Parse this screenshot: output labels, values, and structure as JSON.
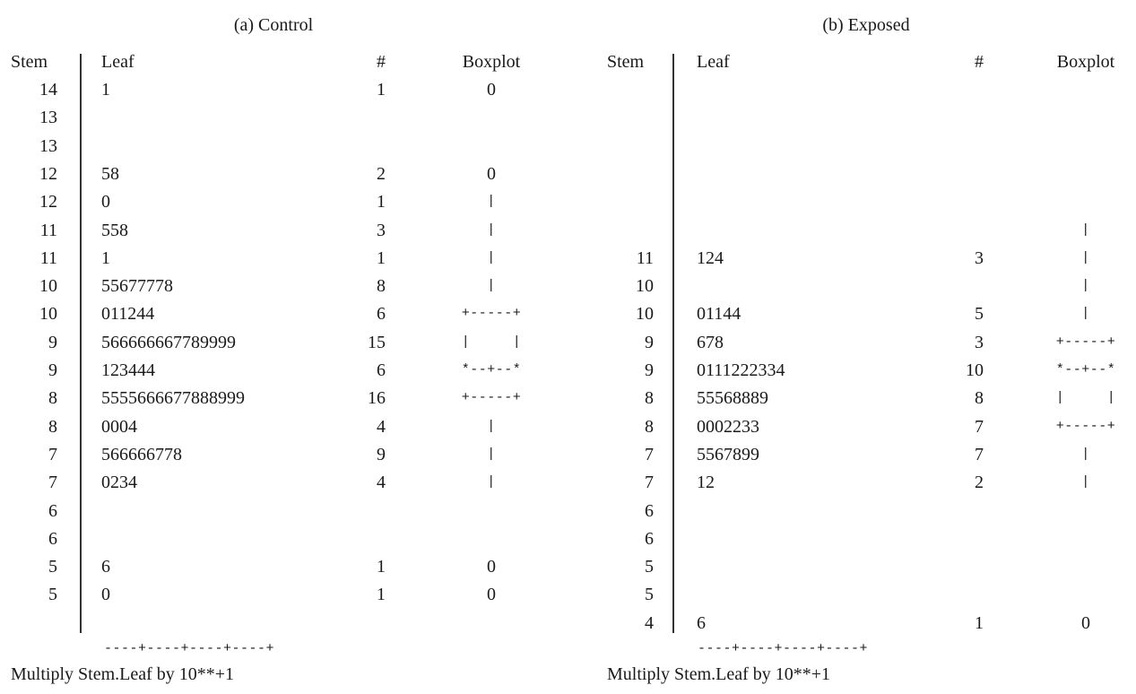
{
  "chart_data": [
    {
      "type": "table",
      "title": "(a) Control",
      "headers": [
        "Stem",
        "Leaf",
        "#",
        "Boxplot"
      ],
      "rows": [
        {
          "stem": "14",
          "leaf": "1",
          "count": "1",
          "box": "0"
        },
        {
          "stem": "13",
          "leaf": "",
          "count": "",
          "box": ""
        },
        {
          "stem": "13",
          "leaf": "",
          "count": "",
          "box": ""
        },
        {
          "stem": "12",
          "leaf": "58",
          "count": "2",
          "box": "0"
        },
        {
          "stem": "12",
          "leaf": "0",
          "count": "1",
          "box": "|"
        },
        {
          "stem": "11",
          "leaf": "558",
          "count": "3",
          "box": "|"
        },
        {
          "stem": "11",
          "leaf": "1",
          "count": "1",
          "box": "|"
        },
        {
          "stem": "10",
          "leaf": "55677778",
          "count": "8",
          "box": "|"
        },
        {
          "stem": "10",
          "leaf": "011244",
          "count": "6",
          "box": "+-----+"
        },
        {
          "stem": "9",
          "leaf": "566666667789999",
          "count": "15",
          "box": "|     |"
        },
        {
          "stem": "9",
          "leaf": "123444",
          "count": "6",
          "box": "*--+--*"
        },
        {
          "stem": "8",
          "leaf": "5555666677888999",
          "count": "16",
          "box": "+-----+"
        },
        {
          "stem": "8",
          "leaf": "0004",
          "count": "4",
          "box": "|"
        },
        {
          "stem": "7",
          "leaf": "566666778",
          "count": "9",
          "box": "|"
        },
        {
          "stem": "7",
          "leaf": "0234",
          "count": "4",
          "box": "|"
        },
        {
          "stem": "6",
          "leaf": "",
          "count": "",
          "box": ""
        },
        {
          "stem": "6",
          "leaf": "",
          "count": "",
          "box": ""
        },
        {
          "stem": "5",
          "leaf": "6",
          "count": "1",
          "box": "0"
        },
        {
          "stem": "5",
          "leaf": "0",
          "count": "1",
          "box": "0"
        }
      ],
      "scale": "----+----+----+----+",
      "footnote": "Multiply Stem.Leaf by 10**+1"
    },
    {
      "type": "table",
      "title": "(b) Exposed",
      "headers": [
        "Stem",
        "Leaf",
        "#",
        "Boxplot"
      ],
      "rows": [
        {
          "stem": "11",
          "leaf": "124",
          "count": "3",
          "box": "|"
        },
        {
          "stem": "10",
          "leaf": "",
          "count": "",
          "box": "|"
        },
        {
          "stem": "10",
          "leaf": "01144",
          "count": "5",
          "box": "|"
        },
        {
          "stem": "9",
          "leaf": "678",
          "count": "3",
          "box": "+-----+"
        },
        {
          "stem": "9",
          "leaf": "0111222334",
          "count": "10",
          "box": "*--+--*"
        },
        {
          "stem": "8",
          "leaf": "55568889",
          "count": "8",
          "box": "|     |"
        },
        {
          "stem": "8",
          "leaf": "0002233",
          "count": "7",
          "box": "+-----+"
        },
        {
          "stem": "7",
          "leaf": "5567899",
          "count": "7",
          "box": "|"
        },
        {
          "stem": "7",
          "leaf": "12",
          "count": "2",
          "box": "|"
        },
        {
          "stem": "6",
          "leaf": "",
          "count": "",
          "box": ""
        },
        {
          "stem": "6",
          "leaf": "",
          "count": "",
          "box": ""
        },
        {
          "stem": "5",
          "leaf": "",
          "count": "",
          "box": ""
        },
        {
          "stem": "5",
          "leaf": "",
          "count": "",
          "box": ""
        },
        {
          "stem": "4",
          "leaf": "6",
          "count": "1",
          "box": "0"
        }
      ],
      "scale": "----+----+----+----+",
      "footnote": "Multiply Stem.Leaf by 10**+1"
    }
  ]
}
